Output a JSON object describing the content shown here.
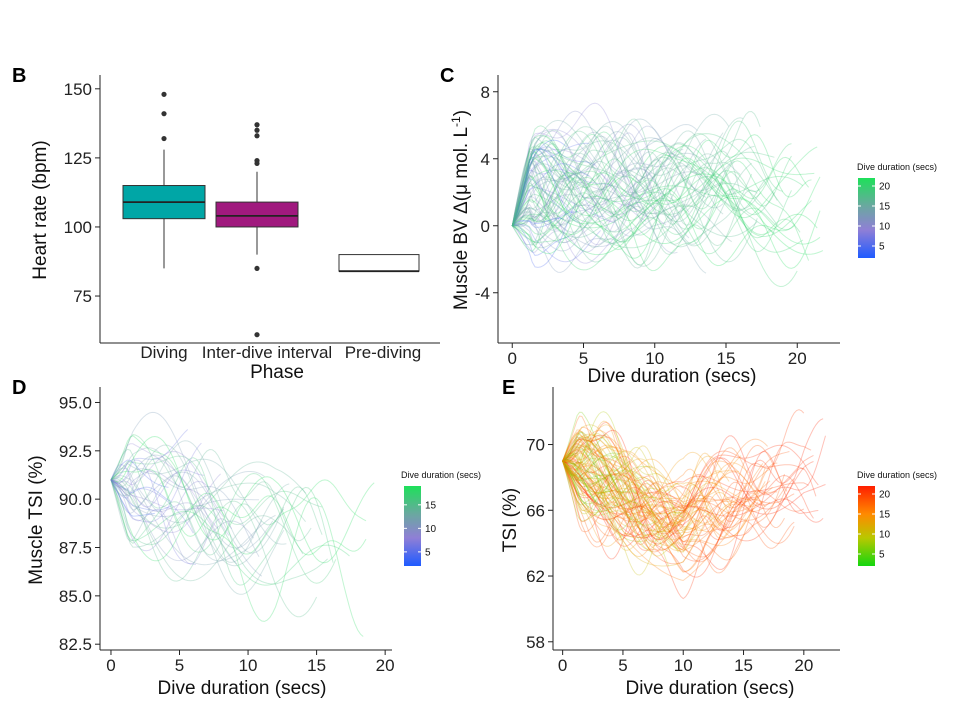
{
  "figure": {
    "panels": {
      "B": {
        "label": "B"
      },
      "C": {
        "label": "C"
      },
      "D": {
        "label": "D"
      },
      "E": {
        "label": "E"
      }
    }
  },
  "colors": {
    "diving": "#00a6a6",
    "interdive": "#a0197e",
    "prediving": "#ffffff",
    "legendBlueGreen": [
      "#1f5bff",
      "#8f7fd6",
      "#6aa8a0",
      "#1ee05a"
    ],
    "legendOrangeGreen": [
      "#14d60f",
      "#b8c800",
      "#ff8a00",
      "#ff1e00"
    ]
  },
  "chart_data": [
    {
      "id": "B",
      "type": "box",
      "categories": [
        "Diving",
        "Inter-dive interval",
        "Pre-diving"
      ],
      "xlabel": "Phase",
      "ylabel": "Heart rate (bpm)",
      "ylim": [
        58,
        155
      ],
      "yticks": [
        75,
        100,
        125,
        150
      ],
      "boxes": [
        {
          "q1": 103,
          "median": 109,
          "q3": 115,
          "whisker_low": 85,
          "whisker_high": 128,
          "outliers": [
            132,
            141,
            148
          ]
        },
        {
          "q1": 100,
          "median": 104,
          "q3": 109,
          "whisker_low": 90,
          "whisker_high": 120,
          "outliers": [
            61,
            85,
            123,
            124,
            133,
            135,
            137
          ]
        },
        {
          "q1": 84,
          "median": 84,
          "q3": 90,
          "whisker_low": 84,
          "whisker_high": 90,
          "outliers": []
        }
      ]
    },
    {
      "id": "C",
      "type": "line",
      "xlabel": "Dive duration (secs)",
      "ylabel_prefix": "Muscle BV Δ(μ mol. L",
      "ylabel_sup": "-1",
      "ylabel_suffix": ")",
      "xlim": [
        -1,
        23
      ],
      "ylim": [
        -7,
        9
      ],
      "xticks": [
        0,
        5,
        10,
        15,
        20
      ],
      "yticks": [
        -4,
        0,
        4,
        8
      ],
      "ytick_labels": [
        "-4",
        "0",
        "4",
        "8"
      ],
      "legend": {
        "title": "Dive duration (secs)",
        "ticks": [
          5,
          10,
          15,
          20
        ],
        "range": [
          2,
          22
        ],
        "scale": "blue-purple-green"
      },
      "series_summary": {
        "count": 90,
        "mean_level": 2,
        "amplitude": 2.5,
        "min_duration": 3,
        "max_duration": 22
      }
    },
    {
      "id": "D",
      "type": "line",
      "xlabel": "Dive duration (secs)",
      "ylabel": "Muscle TSI (%)",
      "xlim": [
        -0.8,
        20.5
      ],
      "ylim": [
        82.2,
        95.8
      ],
      "xticks": [
        0,
        5,
        10,
        15,
        20
      ],
      "yticks": [
        82.5,
        85.0,
        87.5,
        90.0,
        92.5,
        95.0
      ],
      "ytick_labels": [
        "82.5",
        "85.0",
        "87.5",
        "90.0",
        "92.5",
        "95.0"
      ],
      "legend": {
        "title": "Dive duration (secs)",
        "ticks": [
          5,
          10,
          15
        ],
        "range": [
          2,
          19
        ],
        "scale": "blue-purple-green"
      },
      "series_summary": {
        "count": 45,
        "start_level": 91,
        "end_level": 88,
        "amplitude": 2.2,
        "min_duration": 2,
        "max_duration": 19.5
      }
    },
    {
      "id": "E",
      "type": "line",
      "xlabel": "Dive duration (secs)",
      "ylabel": "TSI (%)",
      "xlim": [
        -0.8,
        23
      ],
      "ylim": [
        57.5,
        73.5
      ],
      "xticks": [
        0,
        5,
        10,
        15,
        20
      ],
      "yticks": [
        58,
        62,
        66,
        70
      ],
      "ytick_labels": [
        "58",
        "62",
        "66",
        "70"
      ],
      "legend": {
        "title": "Dive duration (secs)",
        "ticks": [
          5,
          10,
          15,
          20
        ],
        "range": [
          2,
          22
        ],
        "scale": "green-orange-red"
      },
      "series_summary": {
        "count": 110,
        "start_level": 69,
        "trough_level": 65,
        "end_level": 68.5,
        "amplitude": 2,
        "min_duration": 3,
        "max_duration": 22
      }
    }
  ]
}
